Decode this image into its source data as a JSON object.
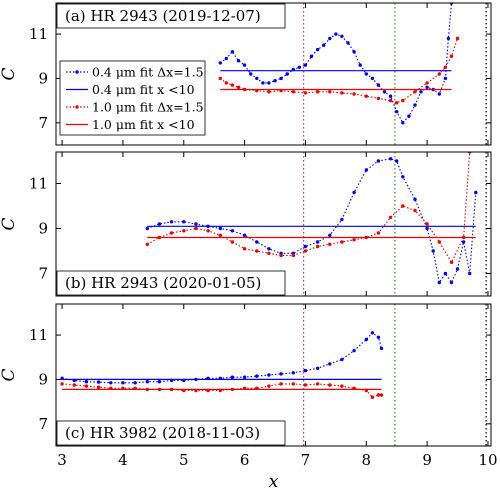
{
  "chart_data": {
    "type": "line",
    "xlabel": "x",
    "ylabel": "C",
    "xlim": [
      2.9,
      10.05
    ],
    "ylim": [
      6,
      12.4
    ],
    "xticks": [
      3,
      4,
      5,
      6,
      7,
      8,
      9,
      10
    ],
    "yticks": [
      7,
      9,
      11
    ],
    "vlines": [
      {
        "x": 6.97,
        "color": "#cc33cc"
      },
      {
        "x": 8.47,
        "color": "#339933"
      },
      {
        "x": 9.97,
        "color": "#000000"
      }
    ],
    "legend": {
      "placement": "upper-left of top panel",
      "entries": [
        {
          "label": "0.4 μm fit Δx=1.5",
          "color": "#0000ee",
          "style": "dotted"
        },
        {
          "label": "0.4 μm fit x <10",
          "color": "#0000ee",
          "style": "solid"
        },
        {
          "label": "1.0 μm fit Δx=1.5",
          "color": "#ee0000",
          "style": "dotted"
        },
        {
          "label": "1.0 μm fit x <10",
          "color": "#ee0000",
          "style": "solid"
        }
      ]
    },
    "panels": [
      {
        "title": "(a) HR 2943 (2019-12-07)",
        "title_position": "top",
        "series": [
          {
            "name": "0.4 μm fit Δx=1.5",
            "color": "#0000ee",
            "style": "dotted",
            "x": [
              5.6,
              5.7,
              5.8,
              5.9,
              6.0,
              6.1,
              6.2,
              6.3,
              6.4,
              6.5,
              6.6,
              6.7,
              6.8,
              6.9,
              7.0,
              7.1,
              7.2,
              7.3,
              7.4,
              7.5,
              7.6,
              7.7,
              7.8,
              7.9,
              8.0,
              8.1,
              8.2,
              8.3,
              8.4,
              8.5,
              8.6,
              8.7,
              8.8,
              8.9,
              9.0,
              9.1,
              9.2,
              9.3,
              9.35,
              9.4
            ],
            "y": [
              9.7,
              9.9,
              10.2,
              9.8,
              9.6,
              9.2,
              9.0,
              8.8,
              8.8,
              8.9,
              9.0,
              9.2,
              9.4,
              9.5,
              9.6,
              10.0,
              10.3,
              10.5,
              10.8,
              11.0,
              10.9,
              10.6,
              10.2,
              9.6,
              9.2,
              9.0,
              8.7,
              8.4,
              8.2,
              7.5,
              7.0,
              7.3,
              7.8,
              8.4,
              8.6,
              8.5,
              8.3,
              9.0,
              10.8,
              12.4
            ]
          },
          {
            "name": "0.4 μm fit x <10",
            "color": "#0000ee",
            "style": "solid",
            "x": [
              5.6,
              9.4
            ],
            "y": [
              9.35,
              9.35
            ]
          },
          {
            "name": "1.0 μm fit Δx=1.5",
            "color": "#ee0000",
            "style": "dotted",
            "x": [
              5.6,
              5.7,
              5.8,
              5.9,
              6.0,
              6.2,
              6.4,
              6.6,
              6.8,
              7.0,
              7.2,
              7.4,
              7.6,
              7.8,
              8.0,
              8.2,
              8.4,
              8.5,
              8.6,
              8.8,
              9.0,
              9.2,
              9.3,
              9.4,
              9.5
            ],
            "y": [
              9.0,
              8.8,
              8.7,
              8.6,
              8.5,
              8.45,
              8.4,
              8.45,
              8.4,
              8.35,
              8.4,
              8.4,
              8.35,
              8.3,
              8.2,
              8.1,
              8.0,
              7.9,
              8.0,
              8.4,
              8.8,
              9.2,
              9.5,
              10.0,
              10.8
            ]
          },
          {
            "name": "1.0 μm fit x <10",
            "color": "#ee0000",
            "style": "solid",
            "x": [
              5.6,
              9.4
            ],
            "y": [
              8.5,
              8.5
            ]
          }
        ]
      },
      {
        "title": "(b) HR 2943 (2020-01-05)",
        "title_position": "bottom",
        "series": [
          {
            "name": "0.4 μm fit Δx=1.5",
            "color": "#0000ee",
            "style": "dotted",
            "x": [
              4.4,
              4.6,
              4.8,
              5.0,
              5.2,
              5.4,
              5.6,
              5.8,
              6.0,
              6.2,
              6.4,
              6.6,
              6.8,
              7.0,
              7.2,
              7.4,
              7.6,
              7.8,
              8.0,
              8.2,
              8.4,
              8.5,
              8.6,
              8.8,
              9.0,
              9.1,
              9.2,
              9.3,
              9.4,
              9.5,
              9.6,
              9.7,
              9.8
            ],
            "y": [
              9.0,
              9.2,
              9.3,
              9.3,
              9.2,
              9.1,
              9.0,
              8.9,
              8.7,
              8.4,
              8.1,
              7.9,
              7.9,
              8.2,
              8.4,
              8.7,
              9.4,
              10.6,
              11.6,
              12.0,
              12.1,
              12.0,
              11.3,
              10.3,
              9.0,
              8.0,
              6.6,
              7.0,
              6.6,
              7.2,
              8.4,
              7.0,
              10.6
            ]
          },
          {
            "name": "0.4 μm fit x <10",
            "color": "#0000ee",
            "style": "solid",
            "x": [
              4.4,
              9.8
            ],
            "y": [
              9.1,
              9.1
            ]
          },
          {
            "name": "1.0 μm fit Δx=1.5",
            "color": "#ee0000",
            "style": "dotted",
            "x": [
              4.4,
              4.6,
              4.8,
              5.0,
              5.2,
              5.4,
              5.6,
              5.8,
              6.0,
              6.2,
              6.4,
              6.6,
              6.8,
              7.0,
              7.2,
              7.4,
              7.6,
              7.8,
              8.0,
              8.2,
              8.4,
              8.6,
              8.8,
              9.0,
              9.2,
              9.4,
              9.6,
              9.7
            ],
            "y": [
              8.3,
              8.6,
              8.8,
              8.9,
              9.0,
              8.9,
              8.7,
              8.4,
              8.1,
              8.0,
              7.9,
              7.8,
              7.8,
              8.0,
              8.2,
              8.3,
              8.4,
              8.5,
              8.6,
              8.8,
              9.5,
              10.0,
              9.8,
              9.2,
              8.4,
              7.5,
              8.6,
              12.4
            ]
          },
          {
            "name": "1.0 μm fit x <10",
            "color": "#ee0000",
            "style": "solid",
            "x": [
              4.4,
              9.8
            ],
            "y": [
              8.6,
              8.6
            ]
          }
        ]
      },
      {
        "title": "(c) HR 3982 (2018-11-03)",
        "title_position": "bottom",
        "series": [
          {
            "name": "0.4 μm fit Δx=1.5",
            "color": "#0000ee",
            "style": "dotted",
            "x": [
              3.0,
              3.2,
              3.4,
              3.6,
              3.8,
              4.0,
              4.2,
              4.4,
              4.6,
              4.8,
              5.0,
              5.2,
              5.4,
              5.6,
              5.8,
              6.0,
              6.2,
              6.4,
              6.6,
              6.8,
              7.0,
              7.2,
              7.4,
              7.6,
              7.8,
              8.0,
              8.1,
              8.2,
              8.25
            ],
            "y": [
              9.05,
              8.95,
              8.9,
              8.88,
              8.85,
              8.85,
              8.85,
              8.9,
              8.9,
              8.95,
              8.95,
              9.0,
              9.05,
              9.05,
              9.1,
              9.1,
              9.15,
              9.2,
              9.25,
              9.3,
              9.4,
              9.5,
              9.7,
              9.9,
              10.3,
              10.8,
              11.1,
              10.9,
              10.4
            ]
          },
          {
            "name": "0.4 μm fit x <10",
            "color": "#0000ee",
            "style": "solid",
            "x": [
              3.0,
              8.25
            ],
            "y": [
              9.0,
              9.0
            ]
          },
          {
            "name": "1.0 μm fit Δx=1.5",
            "color": "#ee0000",
            "style": "dotted",
            "x": [
              3.0,
              3.2,
              3.4,
              3.6,
              3.8,
              4.0,
              4.2,
              4.4,
              4.6,
              4.8,
              5.0,
              5.2,
              5.4,
              5.6,
              5.8,
              6.0,
              6.2,
              6.4,
              6.6,
              6.8,
              7.0,
              7.2,
              7.4,
              7.6,
              7.8,
              8.0,
              8.1,
              8.2,
              8.25
            ],
            "y": [
              8.8,
              8.75,
              8.7,
              8.65,
              8.6,
              8.6,
              8.6,
              8.55,
              8.55,
              8.55,
              8.5,
              8.5,
              8.5,
              8.5,
              8.55,
              8.6,
              8.6,
              8.7,
              8.8,
              8.8,
              8.75,
              8.8,
              8.75,
              8.7,
              8.6,
              8.5,
              8.2,
              8.3,
              8.3
            ]
          },
          {
            "name": "1.0 μm fit x <10",
            "color": "#ee0000",
            "style": "solid",
            "x": [
              3.0,
              8.25
            ],
            "y": [
              8.55,
              8.55
            ]
          }
        ]
      }
    ]
  }
}
